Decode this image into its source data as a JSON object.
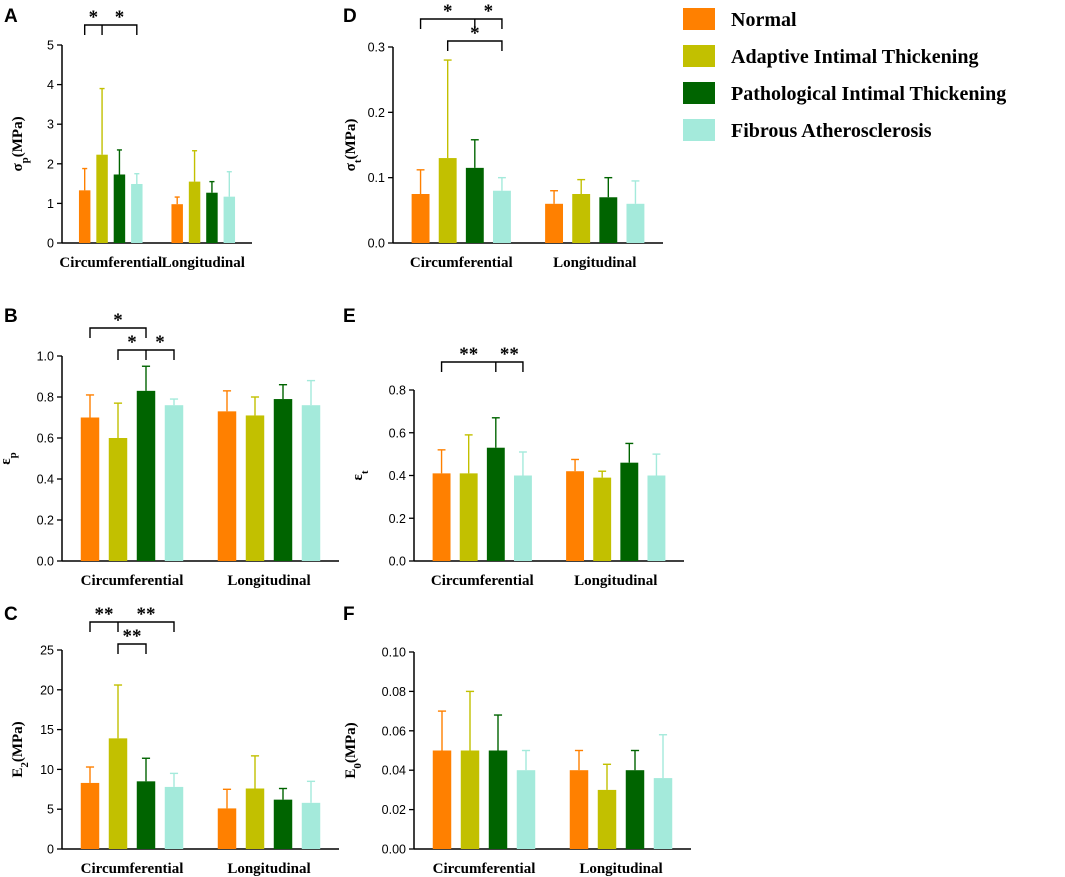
{
  "colors": {
    "Normal": "#ff8000",
    "Adaptive Intimal Thickening": "#c2c000",
    "Pathological Intimal Thickening": "#006400",
    "Fibrous Atherosclerosis": "#a4eadb"
  },
  "legend": {
    "entries": [
      "Normal",
      "Adaptive Intimal Thickening",
      "Pathological Intimal Thickening",
      "Fibrous Atherosclerosis"
    ]
  },
  "chart_data": [
    {
      "id": "A",
      "panel_letter": "A",
      "type": "bar",
      "ylabel": "σp(MPa)",
      "ylabel_parts": [
        {
          "t": "σ",
          "sub": false
        },
        {
          "t": "p",
          "sub": true
        },
        {
          "t": "(MPa)",
          "sub": false
        }
      ],
      "categories": [
        "Circumferential",
        "Longitudinal"
      ],
      "ylim": [
        0,
        5
      ],
      "yticks": [
        0,
        1,
        2,
        3,
        4,
        5
      ],
      "ytick_labels": [
        "0",
        "1",
        "2",
        "3",
        "4",
        "5"
      ],
      "series": [
        {
          "name": "Normal",
          "values": [
            1.33,
            0.98
          ],
          "errors": [
            0.55,
            0.18
          ]
        },
        {
          "name": "Adaptive Intimal Thickening",
          "values": [
            2.23,
            1.55
          ],
          "errors": [
            1.67,
            0.78
          ]
        },
        {
          "name": "Pathological Intimal Thickening",
          "values": [
            1.73,
            1.27
          ],
          "errors": [
            0.62,
            0.28
          ]
        },
        {
          "name": "Fibrous Atherosclerosis",
          "values": [
            1.49,
            1.17
          ],
          "errors": [
            0.26,
            0.63
          ]
        }
      ],
      "significance": [
        {
          "label": "*",
          "from": 0,
          "to": 3,
          "center": 1,
          "label_pos": "split"
        }
      ]
    },
    {
      "id": "B",
      "panel_letter": "B",
      "type": "bar",
      "ylabel": "εp",
      "ylabel_parts": [
        {
          "t": "ε",
          "sub": false
        },
        {
          "t": "p",
          "sub": true
        }
      ],
      "categories": [
        "Circumferential",
        "Longitudinal"
      ],
      "ylim": [
        0,
        1
      ],
      "yticks": [
        0,
        0.2,
        0.4,
        0.6,
        0.8,
        1.0
      ],
      "ytick_labels": [
        "0.0",
        "0.2",
        "0.4",
        "0.6",
        "0.8",
        "1.0"
      ],
      "series": [
        {
          "name": "Normal",
          "values": [
            0.7,
            0.73
          ],
          "errors": [
            0.11,
            0.1
          ]
        },
        {
          "name": "Adaptive Intimal Thickening",
          "values": [
            0.6,
            0.71
          ],
          "errors": [
            0.17,
            0.09
          ]
        },
        {
          "name": "Pathological Intimal Thickening",
          "values": [
            0.83,
            0.79
          ],
          "errors": [
            0.12,
            0.07
          ]
        },
        {
          "name": "Fibrous Atherosclerosis",
          "values": [
            0.76,
            0.76
          ],
          "errors": [
            0.03,
            0.12
          ]
        }
      ],
      "significance": [
        {
          "label": "*",
          "from": 0,
          "to": 2,
          "center": null,
          "label_pos": "middle",
          "level": 0
        },
        {
          "label": "*",
          "from": 1,
          "to": 3,
          "center": 2,
          "label_pos": "split",
          "level": 1
        }
      ]
    },
    {
      "id": "C",
      "panel_letter": "C",
      "type": "bar",
      "ylabel": "E2(MPa)",
      "ylabel_parts": [
        {
          "t": "E",
          "sub": false
        },
        {
          "t": "2",
          "sub": true
        },
        {
          "t": "(MPa)",
          "sub": false
        }
      ],
      "categories": [
        "Circumferential",
        "Longitudinal"
      ],
      "ylim": [
        0,
        25
      ],
      "yticks": [
        0,
        5,
        10,
        15,
        20,
        25
      ],
      "ytick_labels": [
        "0",
        "5",
        "10",
        "15",
        "20",
        "25"
      ],
      "series": [
        {
          "name": "Normal",
          "values": [
            8.3,
            5.1
          ],
          "errors": [
            2.0,
            2.4
          ]
        },
        {
          "name": "Adaptive Intimal Thickening",
          "values": [
            13.9,
            7.6
          ],
          "errors": [
            6.7,
            4.1
          ]
        },
        {
          "name": "Pathological Intimal Thickening",
          "values": [
            8.5,
            6.2
          ],
          "errors": [
            2.9,
            1.4
          ]
        },
        {
          "name": "Fibrous Atherosclerosis",
          "values": [
            7.8,
            5.8
          ],
          "errors": [
            1.7,
            2.7
          ]
        }
      ],
      "significance": [
        {
          "label": "**",
          "from": 0,
          "to": 3,
          "center": 1,
          "label_pos": "split",
          "level": 0
        },
        {
          "label": "**",
          "from": 1,
          "to": 2,
          "center": null,
          "label_pos": "middle",
          "level": 1
        }
      ]
    },
    {
      "id": "D",
      "panel_letter": "D",
      "type": "bar",
      "ylabel": "σt(MPa)",
      "ylabel_parts": [
        {
          "t": "σ",
          "sub": false
        },
        {
          "t": "t",
          "sub": true
        },
        {
          "t": "(MPa)",
          "sub": false
        }
      ],
      "categories": [
        "Circumferential",
        "Longitudinal"
      ],
      "ylim": [
        0,
        0.3
      ],
      "yticks": [
        0,
        0.1,
        0.2,
        0.3
      ],
      "ytick_labels": [
        "0.0",
        "0.1",
        "0.2",
        "0.3"
      ],
      "series": [
        {
          "name": "Normal",
          "values": [
            0.075,
            0.06
          ],
          "errors": [
            0.037,
            0.02
          ]
        },
        {
          "name": "Adaptive Intimal Thickening",
          "values": [
            0.13,
            0.075
          ],
          "errors": [
            0.15,
            0.022
          ]
        },
        {
          "name": "Pathological Intimal Thickening",
          "values": [
            0.115,
            0.07
          ],
          "errors": [
            0.043,
            0.03
          ]
        },
        {
          "name": "Fibrous Atherosclerosis",
          "values": [
            0.08,
            0.06
          ],
          "errors": [
            0.02,
            0.035
          ]
        }
      ],
      "significance": [
        {
          "label": "*",
          "from": 0,
          "to": 3,
          "center": 2,
          "label_pos": "split",
          "level": 0
        },
        {
          "label": "*",
          "from": 1,
          "to": 3,
          "center": null,
          "label_pos": "middle",
          "level": 1
        }
      ]
    },
    {
      "id": "E",
      "panel_letter": "E",
      "type": "bar",
      "ylabel": "εt",
      "ylabel_parts": [
        {
          "t": "ε",
          "sub": false
        },
        {
          "t": "t",
          "sub": true
        }
      ],
      "categories": [
        "Circumferential",
        "Longitudinal"
      ],
      "ylim": [
        0,
        0.8
      ],
      "yticks": [
        0,
        0.2,
        0.4,
        0.6,
        0.8
      ],
      "ytick_labels": [
        "0.0",
        "0.2",
        "0.4",
        "0.6",
        "0.8"
      ],
      "series": [
        {
          "name": "Normal",
          "values": [
            0.41,
            0.42
          ],
          "errors": [
            0.11,
            0.055
          ]
        },
        {
          "name": "Adaptive Intimal Thickening",
          "values": [
            0.41,
            0.39
          ],
          "errors": [
            0.18,
            0.03
          ]
        },
        {
          "name": "Pathological Intimal Thickening",
          "values": [
            0.53,
            0.46
          ],
          "errors": [
            0.14,
            0.09
          ]
        },
        {
          "name": "Fibrous Atherosclerosis",
          "values": [
            0.4,
            0.4
          ],
          "errors": [
            0.11,
            0.1
          ]
        }
      ],
      "significance": [
        {
          "label": "**",
          "from": 0,
          "to": 3,
          "center": 2,
          "label_pos": "split",
          "level": 0
        }
      ]
    },
    {
      "id": "F",
      "panel_letter": "F",
      "type": "bar",
      "ylabel": "E0(MPa)",
      "ylabel_parts": [
        {
          "t": "E",
          "sub": false
        },
        {
          "t": "0",
          "sub": true
        },
        {
          "t": "(MPa)",
          "sub": false
        }
      ],
      "categories": [
        "Circumferential",
        "Longitudinal"
      ],
      "ylim": [
        0,
        0.1
      ],
      "yticks": [
        0,
        0.02,
        0.04,
        0.06,
        0.08,
        0.1
      ],
      "ytick_labels": [
        "0.00",
        "0.02",
        "0.04",
        "0.06",
        "0.08",
        "0.10"
      ],
      "series": [
        {
          "name": "Normal",
          "values": [
            0.05,
            0.04
          ],
          "errors": [
            0.02,
            0.01
          ]
        },
        {
          "name": "Adaptive Intimal Thickening",
          "values": [
            0.05,
            0.03
          ],
          "errors": [
            0.03,
            0.013
          ]
        },
        {
          "name": "Pathological Intimal Thickening",
          "values": [
            0.05,
            0.04
          ],
          "errors": [
            0.018,
            0.01
          ]
        },
        {
          "name": "Fibrous Atherosclerosis",
          "values": [
            0.04,
            0.036
          ],
          "errors": [
            0.01,
            0.022
          ]
        }
      ],
      "significance": []
    }
  ]
}
